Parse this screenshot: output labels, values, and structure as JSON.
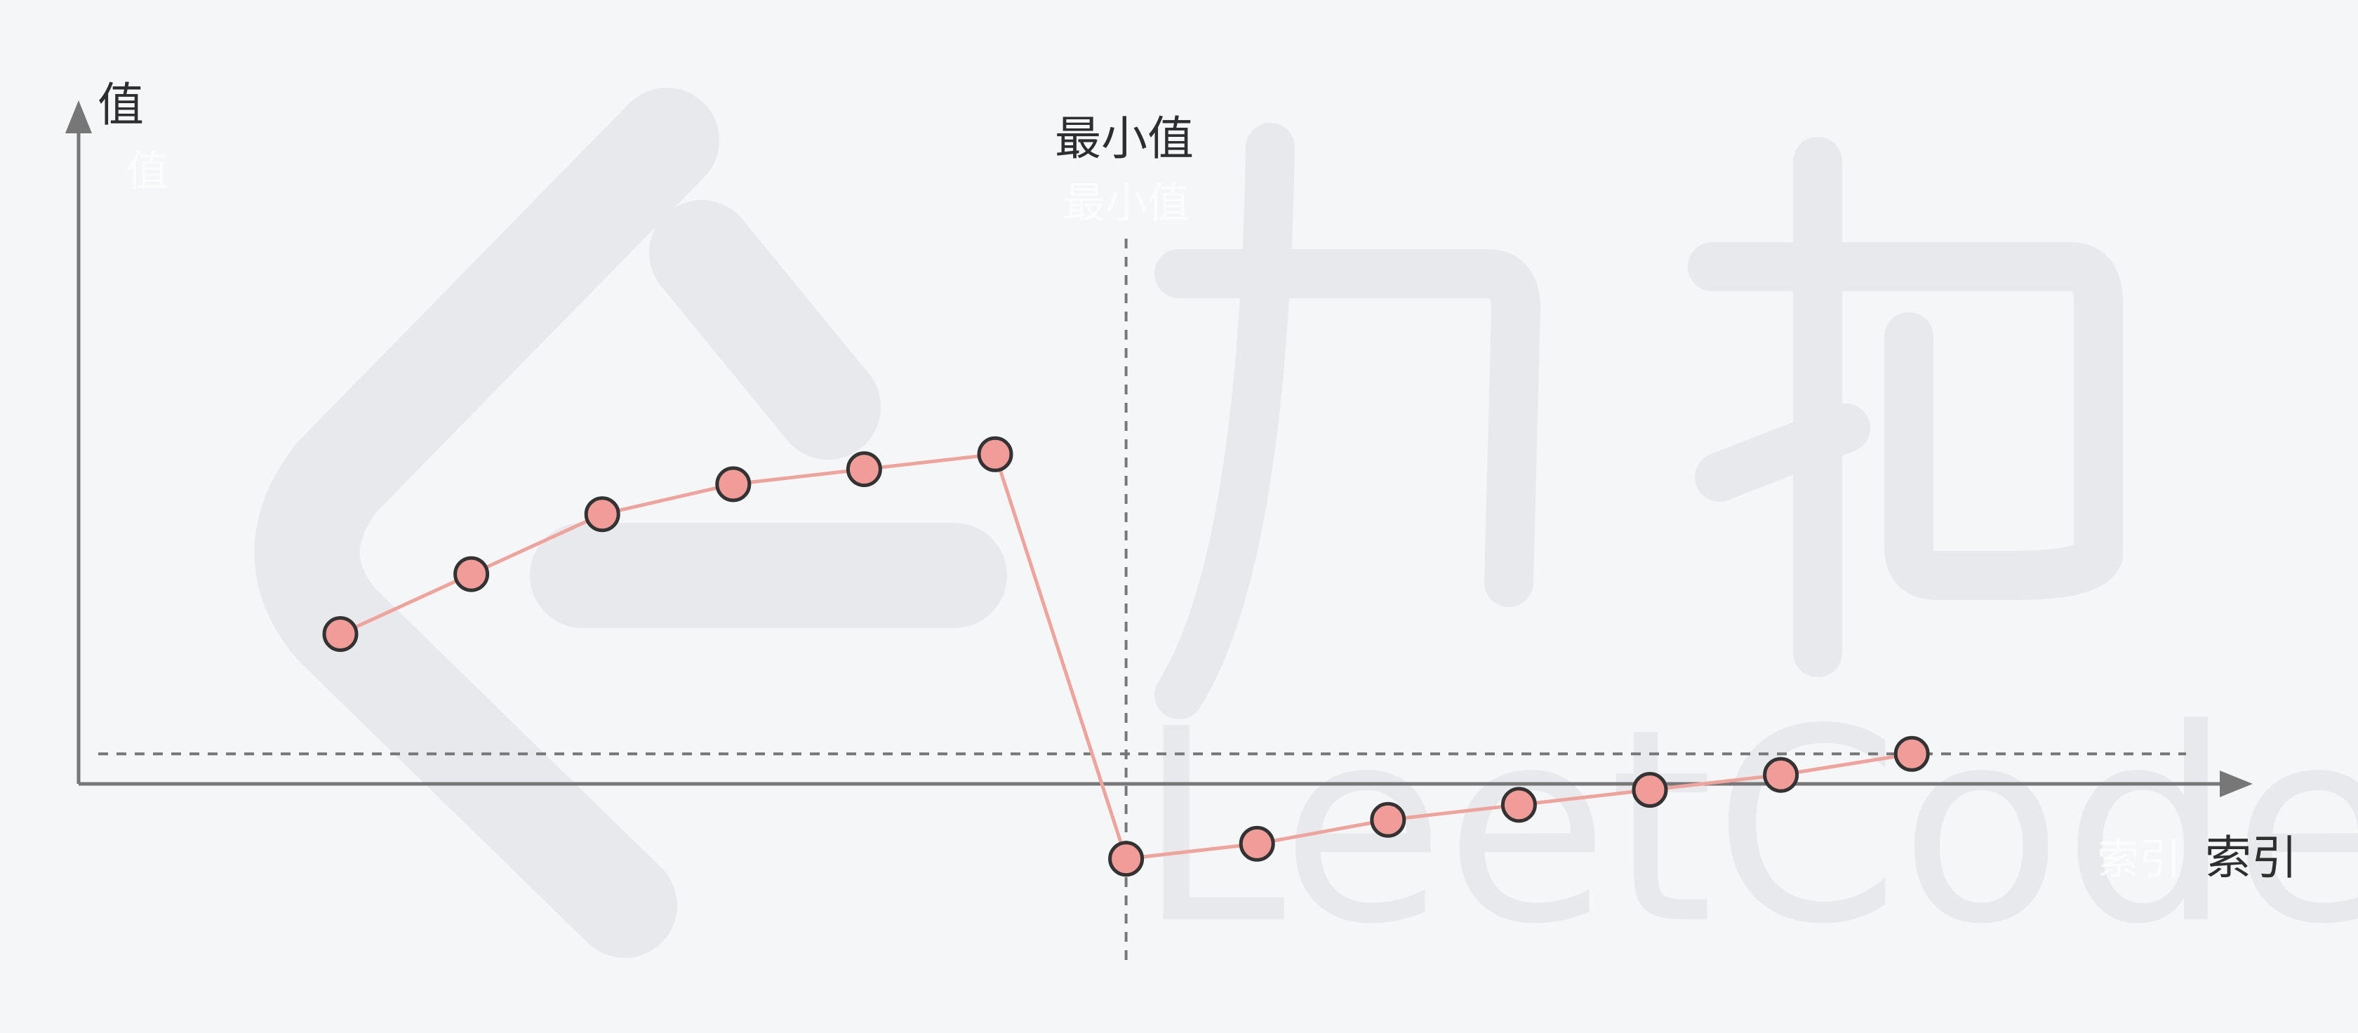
{
  "chart_data": {
    "type": "line",
    "ylabel": "值",
    "xlabel": "索引",
    "annotation": "最小值",
    "x": [
      0,
      1,
      2,
      3,
      4,
      5,
      6,
      7,
      8,
      9,
      10,
      11,
      12
    ],
    "values": [
      5,
      7,
      9,
      10,
      10.5,
      11,
      -2.5,
      -2,
      -1.2,
      -0.7,
      -0.2,
      0.3,
      1
    ],
    "reference_value": 1,
    "min_index": 6,
    "grid": false,
    "colors": {
      "line": "#eea39c",
      "marker_fill": "#f19c99",
      "marker_stroke": "#333333",
      "axis": "#777777",
      "dashed": "#777777"
    }
  }
}
